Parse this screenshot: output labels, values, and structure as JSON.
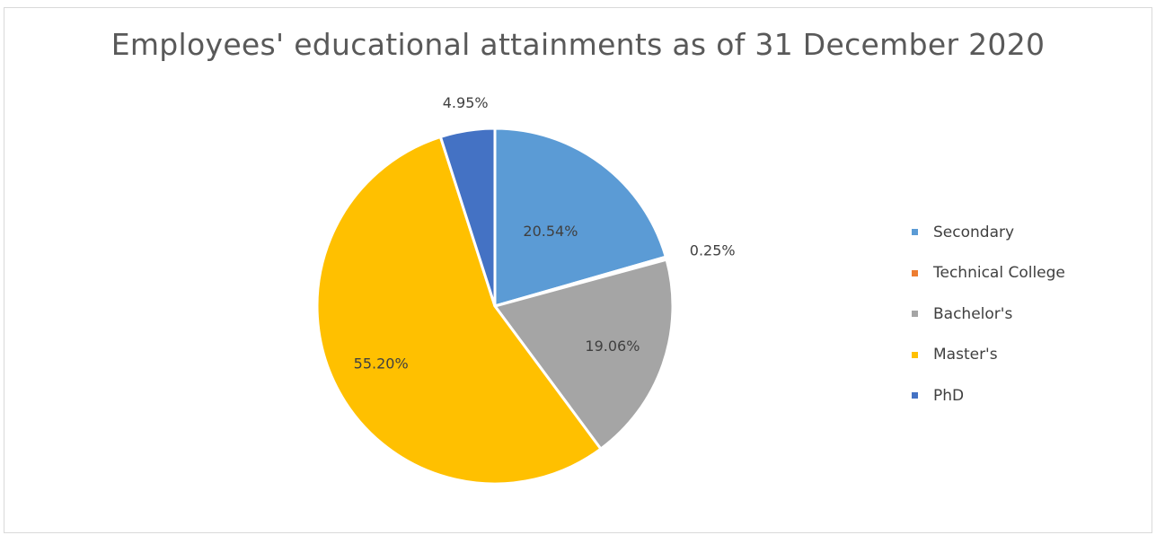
{
  "chart_data": {
    "type": "pie",
    "title": "Employees' educational attainments as of 31 December 2020",
    "categories": [
      "Secondary",
      "Technical College",
      "Bachelor's",
      "Master's",
      "PhD"
    ],
    "values": [
      20.54,
      0.25,
      19.06,
      55.2,
      4.95
    ],
    "data_labels": [
      "20.54%",
      "0.25%",
      "19.06%",
      "55.20%",
      "4.95%"
    ],
    "colors": [
      "#5b9bd5",
      "#ed7d31",
      "#a5a5a5",
      "#ffc000",
      "#4472c4"
    ],
    "legend_position": "right",
    "start_angle": "top, clockwise"
  }
}
